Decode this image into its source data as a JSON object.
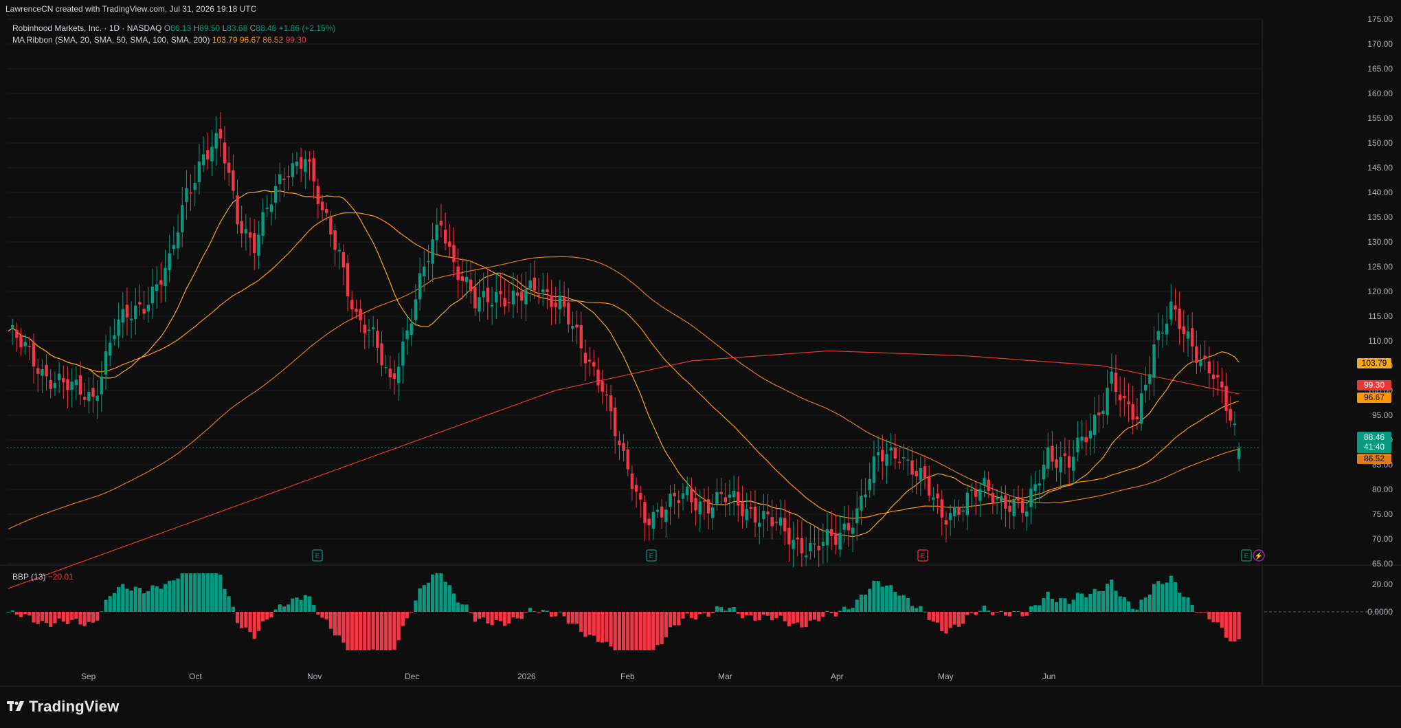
{
  "header": {
    "credit": "LawrenceCN created with TradingView.com, Jul 31, 2026 19:18 UTC"
  },
  "legend": {
    "symbol": "Robinhood Markets, Inc. · 1D · NASDAQ",
    "open_label": "O",
    "open": "86.13",
    "high_label": "H",
    "high": "89.50",
    "low_label": "L",
    "low": "83.68",
    "close_label": "C",
    "close": "88.46",
    "change": "+1.86 (+2.15%)",
    "ma_label": "MA Ribbon (SMA, 20, SMA, 50, SMA, 100, SMA, 200)",
    "ma20": "103.79",
    "ma50": "96.67",
    "ma100": "86.52",
    "ma200": "99.30",
    "bbp_label": "BBP (13)",
    "bbp_value": "−20.01"
  },
  "colors": {
    "up": "#089981",
    "down": "#f23645",
    "ma20": "#f5a623",
    "ma50": "#ff9800",
    "ma100": "#e07b1a",
    "ma200": "#e53935",
    "bg": "#0e0e0e",
    "grid": "#1c1c1c"
  },
  "price_axis_ticks": [
    "175.00",
    "170.00",
    "165.00",
    "160.00",
    "155.00",
    "150.00",
    "145.00",
    "140.00",
    "135.00",
    "130.00",
    "125.00",
    "120.00",
    "115.00",
    "110.00",
    "105.00",
    "100.00",
    "95.00",
    "90.00",
    "85.00",
    "80.00",
    "75.00",
    "70.00",
    "65.00"
  ],
  "bbp_axis_ticks": [
    "20.00",
    "0.0000"
  ],
  "price_tags": {
    "ma20": "103.79",
    "ma200": "99.30",
    "ma50": "96.67",
    "last": "88.46",
    "countdown": "41:40",
    "ma100": "86.52"
  },
  "months": [
    "Sep",
    "Oct",
    "Nov",
    "Dec",
    "2026",
    "Feb",
    "Mar",
    "Apr",
    "May",
    "Jun"
  ],
  "earnings_markers": [
    "E",
    "E",
    "E",
    "E"
  ],
  "footer": {
    "brand": "TradingView"
  },
  "chart_data": {
    "type": "candlestick",
    "title": "Robinhood Markets, Inc. · 1D · NASDAQ",
    "ylim": [
      65,
      175
    ],
    "series_keyframes": [
      {
        "day": 0,
        "close": 112
      },
      {
        "day": 8,
        "close": 104
      },
      {
        "day": 15,
        "close": 100
      },
      {
        "day": 20,
        "close": 99
      },
      {
        "day": 25,
        "close": 112
      },
      {
        "day": 32,
        "close": 118
      },
      {
        "day": 38,
        "close": 125
      },
      {
        "day": 42,
        "close": 140
      },
      {
        "day": 46,
        "close": 148
      },
      {
        "day": 50,
        "close": 150
      },
      {
        "day": 54,
        "close": 135
      },
      {
        "day": 58,
        "close": 130
      },
      {
        "day": 62,
        "close": 138
      },
      {
        "day": 66,
        "close": 145
      },
      {
        "day": 70,
        "close": 148
      },
      {
        "day": 74,
        "close": 135
      },
      {
        "day": 78,
        "close": 128
      },
      {
        "day": 82,
        "close": 115
      },
      {
        "day": 86,
        "close": 110
      },
      {
        "day": 90,
        "close": 102
      },
      {
        "day": 94,
        "close": 112
      },
      {
        "day": 98,
        "close": 124
      },
      {
        "day": 102,
        "close": 135
      },
      {
        "day": 105,
        "close": 126
      },
      {
        "day": 110,
        "close": 117
      },
      {
        "day": 115,
        "close": 120
      },
      {
        "day": 120,
        "close": 118
      },
      {
        "day": 125,
        "close": 121
      },
      {
        "day": 130,
        "close": 118
      },
      {
        "day": 135,
        "close": 108
      },
      {
        "day": 140,
        "close": 102
      },
      {
        "day": 145,
        "close": 85
      },
      {
        "day": 150,
        "close": 75
      },
      {
        "day": 155,
        "close": 76
      },
      {
        "day": 160,
        "close": 79
      },
      {
        "day": 165,
        "close": 77
      },
      {
        "day": 170,
        "close": 78
      },
      {
        "day": 175,
        "close": 76
      },
      {
        "day": 180,
        "close": 73
      },
      {
        "day": 185,
        "close": 70
      },
      {
        "day": 190,
        "close": 68
      },
      {
        "day": 195,
        "close": 70
      },
      {
        "day": 200,
        "close": 76
      },
      {
        "day": 205,
        "close": 86
      },
      {
        "day": 210,
        "close": 88
      },
      {
        "day": 215,
        "close": 82
      },
      {
        "day": 220,
        "close": 75
      },
      {
        "day": 225,
        "close": 77
      },
      {
        "day": 230,
        "close": 80
      },
      {
        "day": 235,
        "close": 78
      },
      {
        "day": 240,
        "close": 75
      },
      {
        "day": 245,
        "close": 88
      },
      {
        "day": 250,
        "close": 85
      },
      {
        "day": 255,
        "close": 92
      },
      {
        "day": 260,
        "close": 103
      },
      {
        "day": 263,
        "close": 96
      },
      {
        "day": 266,
        "close": 94
      },
      {
        "day": 270,
        "close": 110
      },
      {
        "day": 274,
        "close": 116
      },
      {
        "day": 277,
        "close": 111
      },
      {
        "day": 280,
        "close": 108
      },
      {
        "day": 284,
        "close": 104
      },
      {
        "day": 287,
        "close": 96
      },
      {
        "day": 290,
        "close": 88.46
      }
    ],
    "last": {
      "open": 86.13,
      "high": 89.5,
      "low": 83.68,
      "close": 88.46
    },
    "moving_averages": {
      "sma20": 103.79,
      "sma50": 96.67,
      "sma100": 86.52,
      "sma200": 99.3
    },
    "bbp_last": -20.01,
    "bbp_ylim": [
      -35,
      30
    ]
  }
}
